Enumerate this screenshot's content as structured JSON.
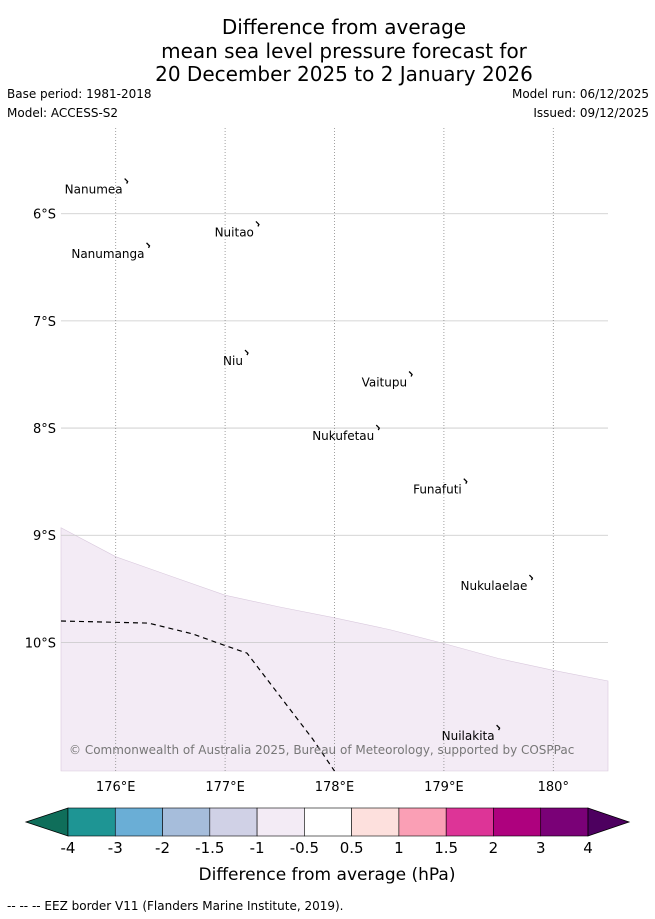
{
  "title_lines": [
    "Difference from average",
    "mean sea level pressure forecast for",
    "20 December 2025 to 2 January 2026"
  ],
  "base_period": "Base period: 1981-2018",
  "model": "Model: ACCESS-S2",
  "model_run": "Model run: 06/12/2025",
  "issued": "Issued: 09/12/2025",
  "copyright": "© Commonwealth of Australia 2025, Bureau of Meteorology, supported by COSPPac",
  "footnote": "--  --  -- EEZ border V11 (Flanders Marine Institute, 2019).",
  "map": {
    "lon_range": [
      175.5,
      180.5
    ],
    "lat_range": [
      -11.2,
      -5.2
    ],
    "lat_ticks": [
      {
        "value": -6,
        "label": "6°S"
      },
      {
        "value": -7,
        "label": "7°S"
      },
      {
        "value": -8,
        "label": "8°S"
      },
      {
        "value": -9,
        "label": "9°S"
      },
      {
        "value": -10,
        "label": "10°S"
      }
    ],
    "lon_ticks": [
      {
        "value": 176,
        "label": "176°E"
      },
      {
        "value": 177,
        "label": "177°E"
      },
      {
        "value": 178,
        "label": "178°E"
      },
      {
        "value": 179,
        "label": "179°E"
      },
      {
        "value": 180,
        "label": "180°"
      }
    ],
    "islands": [
      {
        "name": "Nanumea",
        "lon": 176.1,
        "lat": -5.7
      },
      {
        "name": "Nuitao",
        "lon": 177.3,
        "lat": -6.1
      },
      {
        "name": "Nanumanga",
        "lon": 176.3,
        "lat": -6.3
      },
      {
        "name": "Niu",
        "lon": 177.2,
        "lat": -7.3
      },
      {
        "name": "Vaitupu",
        "lon": 178.7,
        "lat": -7.5
      },
      {
        "name": "Nukufetau",
        "lon": 178.4,
        "lat": -8.0
      },
      {
        "name": "Funafuti",
        "lon": 179.2,
        "lat": -8.5
      },
      {
        "name": "Nukulaelae",
        "lon": 179.8,
        "lat": -9.4
      },
      {
        "name": "Nuilakita",
        "lon": 179.5,
        "lat": -10.8
      }
    ],
    "shaded_region": {
      "category": "-0.5 to -1",
      "color": "#f3ebf5",
      "upper_boundary": [
        [
          175.5,
          -8.93
        ],
        [
          176.0,
          -9.2
        ],
        [
          176.5,
          -9.38
        ],
        [
          177.0,
          -9.56
        ],
        [
          177.5,
          -9.67
        ],
        [
          178.0,
          -9.77
        ],
        [
          178.5,
          -9.88
        ],
        [
          179.0,
          -10.01
        ],
        [
          179.5,
          -10.15
        ],
        [
          180.0,
          -10.26
        ],
        [
          180.5,
          -10.36
        ]
      ]
    },
    "eez_border": [
      [
        175.5,
        -9.8
      ],
      [
        176.3,
        -9.82
      ],
      [
        176.7,
        -9.92
      ],
      [
        177.0,
        -10.03
      ],
      [
        177.2,
        -10.1
      ],
      [
        177.5,
        -10.5
      ],
      [
        177.8,
        -10.9
      ],
      [
        178.0,
        -11.2
      ]
    ]
  },
  "colorbar": {
    "label": "Difference from average (hPa)",
    "tick_labels": [
      "-4",
      "-3",
      "-2",
      "-1.5",
      "-1",
      "-0.5",
      "0.5",
      "1",
      "1.5",
      "2",
      "3",
      "4"
    ],
    "under_color": "#0f6e5a",
    "over_color": "#4d005f",
    "colors": [
      "#1e9594",
      "#6aaed6",
      "#a6bddb",
      "#d0d1e6",
      "#f3ebf5",
      "#ffffff",
      "#fde0dd",
      "#fa9fb5",
      "#dd3497",
      "#ae017e",
      "#7a0177"
    ]
  }
}
